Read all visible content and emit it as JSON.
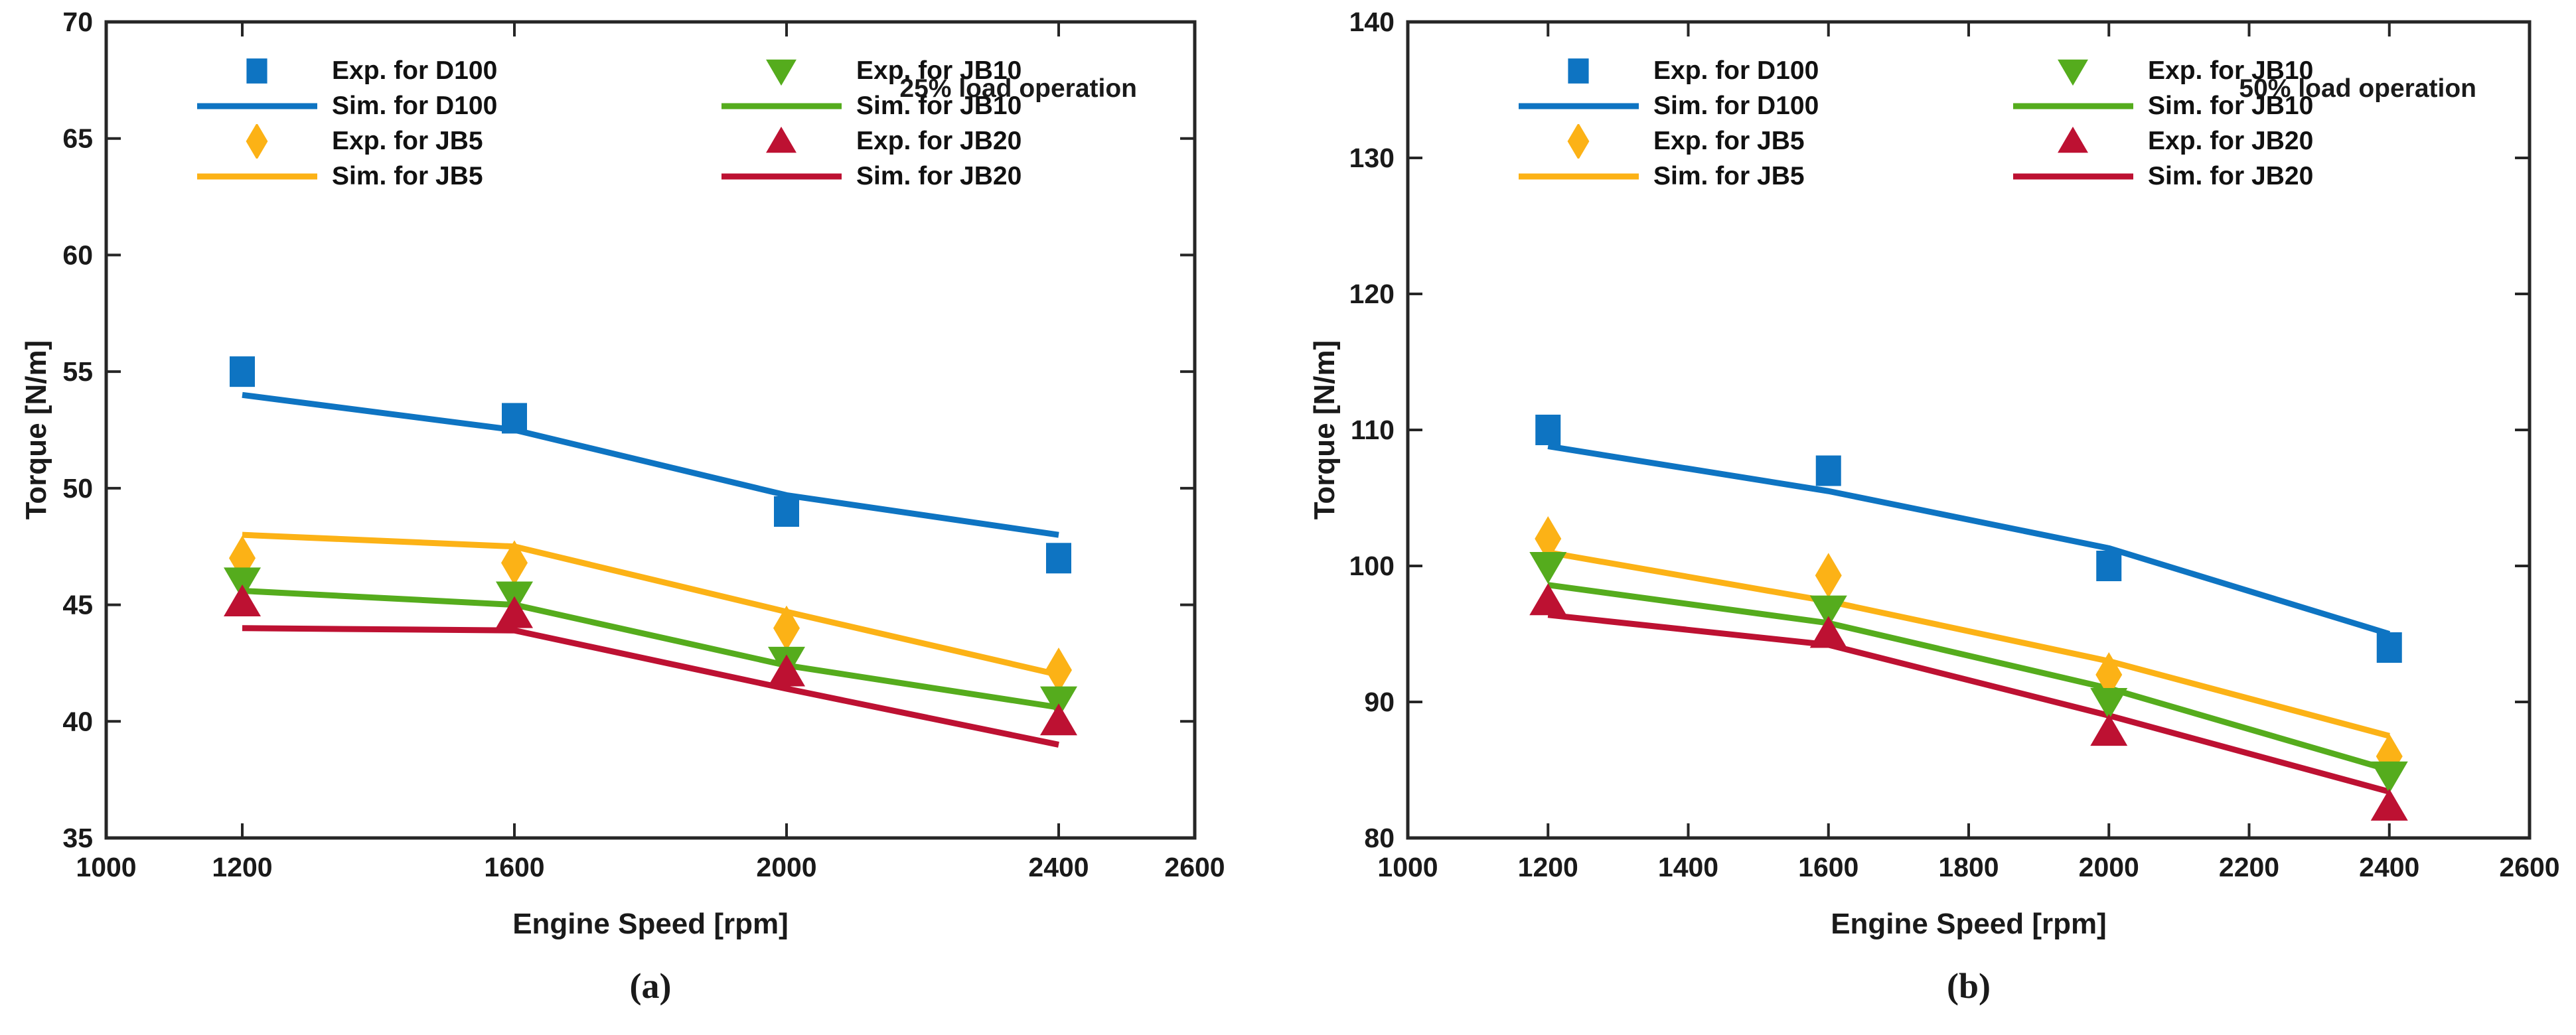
{
  "page": {
    "background": "#ffffff"
  },
  "colors": {
    "blue": "#0e74c2",
    "orange": "#fcb216",
    "green": "#55ac1d",
    "red": "#bd1132",
    "axis": "#262626",
    "text": "#1a1a1a"
  },
  "chart_data": [
    {
      "type": "line",
      "panel_label": "(a)",
      "annotation": "25% load operation",
      "xlabel": "Engine Speed [rpm]",
      "ylabel": "Torque [N/m]",
      "xlim": [
        1000,
        2600
      ],
      "ylim": [
        35,
        70
      ],
      "xticks": [
        1000,
        1200,
        1600,
        2000,
        2400,
        2600
      ],
      "yticks": [
        35,
        40,
        45,
        50,
        55,
        60,
        65,
        70
      ],
      "x": [
        1200,
        1600,
        2000,
        2400
      ],
      "grid": false,
      "legend_position": "top-left, two columns, no box",
      "series": [
        {
          "label": "Exp. for D100",
          "kind": "exp",
          "marker": "square",
          "color": "blue",
          "values": [
            55,
            53,
            49,
            47
          ]
        },
        {
          "label": "Sim. for D100",
          "kind": "sim",
          "marker": "line",
          "color": "blue",
          "values": [
            54,
            52.5,
            49.7,
            48
          ]
        },
        {
          "label": "Exp. for JB5",
          "kind": "exp",
          "marker": "diamond",
          "color": "orange",
          "values": [
            47,
            46.8,
            44,
            42.2
          ]
        },
        {
          "label": "Sim. for JB5",
          "kind": "sim",
          "marker": "line",
          "color": "orange",
          "values": [
            48,
            47.5,
            44.7,
            42
          ]
        },
        {
          "label": "Exp. for JB10",
          "kind": "exp",
          "marker": "triangle-down",
          "color": "green",
          "values": [
            46,
            45.4,
            42.6,
            40.9
          ]
        },
        {
          "label": "Sim. for JB10",
          "kind": "sim",
          "marker": "line",
          "color": "green",
          "values": [
            45.6,
            45,
            42.4,
            40.6
          ]
        },
        {
          "label": "Exp. for JB20",
          "kind": "exp",
          "marker": "triangle-up",
          "color": "red",
          "values": [
            45.1,
            44.6,
            42.1,
            40
          ]
        },
        {
          "label": "Sim. for JB20",
          "kind": "sim",
          "marker": "line",
          "color": "red",
          "values": [
            44,
            43.9,
            41.4,
            39
          ]
        }
      ]
    },
    {
      "type": "line",
      "panel_label": "(b)",
      "annotation": "50% load operation",
      "xlabel": "Engine Speed [rpm]",
      "ylabel": "Torque [N/m]",
      "xlim": [
        1000,
        2600
      ],
      "ylim": [
        80,
        140
      ],
      "xticks": [
        1000,
        1200,
        1400,
        1600,
        1800,
        2000,
        2200,
        2400,
        2600
      ],
      "yticks": [
        80,
        90,
        100,
        110,
        120,
        130,
        140
      ],
      "x": [
        1200,
        1600,
        2000,
        2400
      ],
      "grid": false,
      "legend_position": "top-left, two columns, no box",
      "series": [
        {
          "label": "Exp. for D100",
          "kind": "exp",
          "marker": "square",
          "color": "blue",
          "values": [
            110,
            107,
            100,
            94
          ]
        },
        {
          "label": "Sim. for D100",
          "kind": "sim",
          "marker": "line",
          "color": "blue",
          "values": [
            108.8,
            105.5,
            101.3,
            95
          ]
        },
        {
          "label": "Exp. for JB5",
          "kind": "exp",
          "marker": "diamond",
          "color": "orange",
          "values": [
            102,
            99.3,
            92,
            86
          ]
        },
        {
          "label": "Sim. for JB5",
          "kind": "sim",
          "marker": "line",
          "color": "orange",
          "values": [
            101,
            97.4,
            93,
            87.5
          ]
        },
        {
          "label": "Exp. for JB10",
          "kind": "exp",
          "marker": "triangle-down",
          "color": "green",
          "values": [
            100,
            96.8,
            90,
            84.6
          ]
        },
        {
          "label": "Sim. for JB10",
          "kind": "sim",
          "marker": "line",
          "color": "green",
          "values": [
            98.6,
            95.8,
            91,
            85
          ]
        },
        {
          "label": "Exp. for JB20",
          "kind": "exp",
          "marker": "triangle-up",
          "color": "red",
          "values": [
            97.4,
            95,
            87.8,
            82.3
          ]
        },
        {
          "label": "Sim. for JB20",
          "kind": "sim",
          "marker": "line",
          "color": "red",
          "values": [
            96.4,
            94.2,
            89,
            83.4
          ]
        }
      ]
    }
  ]
}
